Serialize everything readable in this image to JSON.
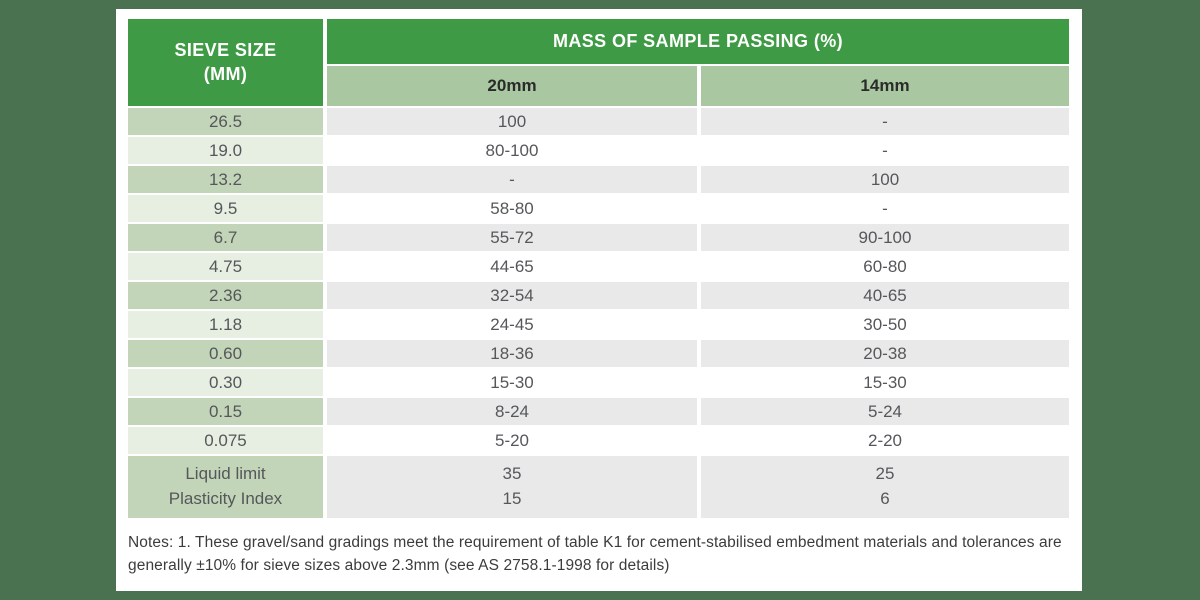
{
  "colors": {
    "page_background": "#4a7150",
    "header_green": "#3e9a44",
    "subheader_green": "#a9c8a1",
    "sieve_row_dark": "#c2d5b8",
    "sieve_row_light": "#e6efe1",
    "data_row_gray": "#e9e9e9",
    "data_row_white": "#ffffff"
  },
  "table": {
    "sieve_header_line1": "SIEVE SIZE",
    "sieve_header_line2": "(MM)",
    "main_header": "MASS OF SAMPLE PASSING (%)",
    "sub_headers": {
      "col_20mm": "20mm",
      "col_14mm": "14mm"
    },
    "rows": [
      {
        "sieve": "26.5",
        "p20": "100",
        "p14": "-"
      },
      {
        "sieve": "19.0",
        "p20": "80-100",
        "p14": "-"
      },
      {
        "sieve": "13.2",
        "p20": "-",
        "p14": "100"
      },
      {
        "sieve": "9.5",
        "p20": "58-80",
        "p14": "-"
      },
      {
        "sieve": "6.7",
        "p20": "55-72",
        "p14": "90-100"
      },
      {
        "sieve": "4.75",
        "p20": "44-65",
        "p14": "60-80"
      },
      {
        "sieve": "2.36",
        "p20": "32-54",
        "p14": "40-65"
      },
      {
        "sieve": "1.18",
        "p20": "24-45",
        "p14": "30-50"
      },
      {
        "sieve": "0.60",
        "p20": "18-36",
        "p14": "20-38"
      },
      {
        "sieve": "0.30",
        "p20": "15-30",
        "p14": "15-30"
      },
      {
        "sieve": "0.15",
        "p20": "8-24",
        "p14": "5-24"
      },
      {
        "sieve": "0.075",
        "p20": "5-20",
        "p14": "2-20"
      }
    ],
    "summary_row": {
      "label_line1": "Liquid limit",
      "label_line2": "Plasticity Index",
      "p20_line1": "35",
      "p20_line2": "15",
      "p14_line1": "25",
      "p14_line2": "6"
    }
  },
  "notes": {
    "text": "Notes: 1. These gravel/sand gradings meet the requirement of table K1 for cement-stabilised embedment materials and tolerances are generally ±10% for sieve sizes above 2.3mm (see AS 2758.1-1998 for details)"
  },
  "chart_data": {
    "type": "table",
    "title": "MASS OF SAMPLE PASSING (%)",
    "columns": [
      "Sieve size (mm)",
      "20mm",
      "14mm"
    ],
    "rows": [
      [
        "26.5",
        "100",
        "-"
      ],
      [
        "19.0",
        "80-100",
        "-"
      ],
      [
        "13.2",
        "-",
        "100"
      ],
      [
        "9.5",
        "58-80",
        "-"
      ],
      [
        "6.7",
        "55-72",
        "90-100"
      ],
      [
        "4.75",
        "44-65",
        "60-80"
      ],
      [
        "2.36",
        "32-54",
        "40-65"
      ],
      [
        "1.18",
        "24-45",
        "30-50"
      ],
      [
        "0.60",
        "18-36",
        "20-38"
      ],
      [
        "0.30",
        "15-30",
        "15-30"
      ],
      [
        "0.15",
        "8-24",
        "5-24"
      ],
      [
        "0.075",
        "5-20",
        "2-20"
      ],
      [
        "Liquid limit",
        "35",
        "25"
      ],
      [
        "Plasticity Index",
        "15",
        "6"
      ]
    ]
  }
}
